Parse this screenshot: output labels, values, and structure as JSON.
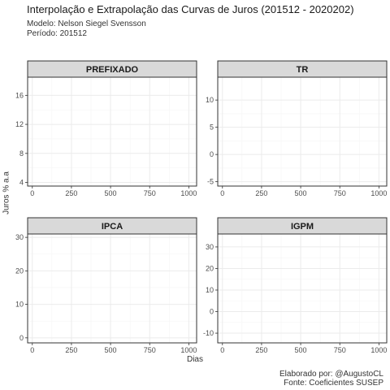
{
  "chart": {
    "title": "Interpolação e Extrapolação das Curvas de Juros (201512 - 2020202)",
    "subtitle_model": "Modelo: Nelson Siegel Svensson",
    "subtitle_period": "Período: 201512",
    "ylabel": "Juros % a.a",
    "xlabel": "Dias",
    "caption_author": "Elaborado por: @AugustoCL",
    "caption_source": "Fonte: Coeficientes SUSEP"
  },
  "chart_data": {
    "type": "line",
    "grid": true,
    "legend": "none",
    "panels": [
      {
        "name": "PREFIXADO",
        "xlim": [
          -30,
          1050
        ],
        "ylim": [
          3.5,
          18.5
        ],
        "x_ticks": [
          0,
          250,
          500,
          750,
          1000
        ],
        "y_ticks": [
          4,
          8,
          12,
          16
        ],
        "series": []
      },
      {
        "name": "TR",
        "xlim": [
          -30,
          1050
        ],
        "ylim": [
          -5.8,
          14.2
        ],
        "x_ticks": [
          0,
          250,
          500,
          750,
          1000
        ],
        "y_ticks": [
          -5,
          0,
          5,
          10
        ],
        "series": []
      },
      {
        "name": "IPCA",
        "xlim": [
          -30,
          1050
        ],
        "ylim": [
          -1.5,
          31
        ],
        "x_ticks": [
          0,
          250,
          500,
          750,
          1000
        ],
        "y_ticks": [
          0,
          10,
          20,
          30
        ],
        "series": []
      },
      {
        "name": "IGPM",
        "xlim": [
          -30,
          1050
        ],
        "ylim": [
          -14.5,
          36
        ],
        "x_ticks": [
          0,
          250,
          500,
          750,
          1000
        ],
        "y_ticks": [
          -10,
          0,
          10,
          20,
          30
        ],
        "series": []
      }
    ]
  },
  "colors": {
    "strip_fill": "#d9d9d9",
    "panel_border": "#333333",
    "grid_major": "#ebebeb",
    "grid_minor": "#f5f5f5"
  }
}
